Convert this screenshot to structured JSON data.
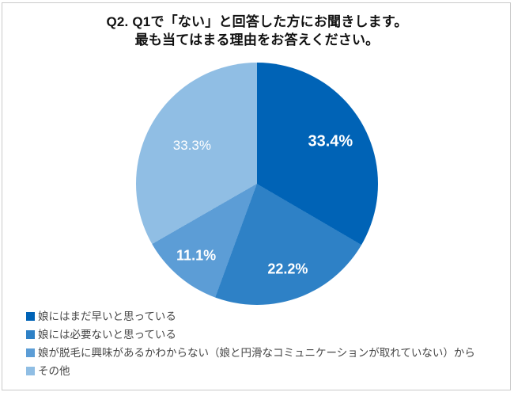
{
  "title": {
    "line1": "Q2. Q1で「ない」と回答した方にお聞きします。",
    "line2": "最も当てはまる理由をお答えください。"
  },
  "chart_data": {
    "type": "pie",
    "title": "Q2. Q1で「ない」と回答した方にお聞きします。最も当てはまる理由をお答えください。",
    "labels": [
      "娘にはまだ早いと思っている",
      "娘には必要ないと思っている",
      "娘が脱毛に興味があるかわからない（娘と円滑なコミュニケーションが取れていない）から",
      "その他"
    ],
    "values": [
      33.4,
      22.2,
      11.1,
      33.3
    ],
    "value_labels": [
      "33.4%",
      "22.2%",
      "11.1%",
      "33.3%"
    ],
    "colors": [
      "#0063B6",
      "#2E81C6",
      "#5C9DD6",
      "#90BEE4"
    ],
    "start_angle_deg": 0,
    "direction": "clockwise",
    "value_label_color": "#FFFFFF",
    "legend_position": "bottom-left",
    "grid": false
  }
}
